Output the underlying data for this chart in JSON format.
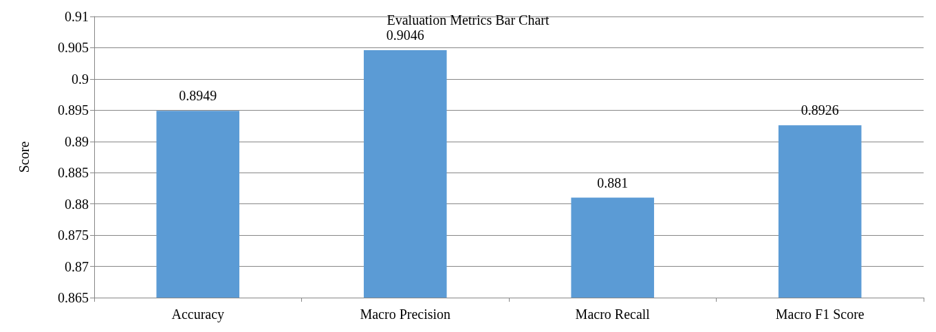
{
  "chart_data": {
    "type": "bar",
    "title": "Evaluation Metrics Bar Chart",
    "ylabel": "Score",
    "categories": [
      "Accuracy",
      "Macro Precision",
      "Macro Recall",
      "Macro F1 Score"
    ],
    "values": [
      0.8949,
      0.9046,
      0.881,
      0.8926
    ],
    "color": "#5b9bd5",
    "ylim": [
      0.865,
      0.91
    ],
    "yticks": [
      0.865,
      0.87,
      0.875,
      0.88,
      0.885,
      0.89,
      0.895,
      0.9,
      0.905,
      0.91
    ],
    "grid": "y",
    "data_labels": true
  }
}
